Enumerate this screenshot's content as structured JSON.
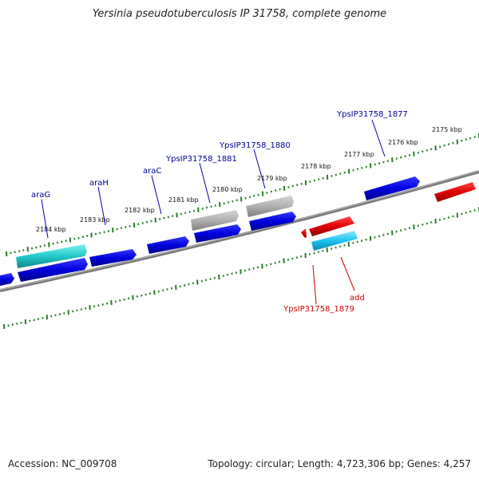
{
  "title": "Yersinia pseudotuberculosis IP 31758, complete genome",
  "accession": "Accession: NC_009708",
  "topology": "Topology: circular; Length: 4,723,306 bp; Genes: 4,257",
  "colors": {
    "forward_gene": "#0000dd",
    "reverse_gene": "#dd0000",
    "pseudo_gene": "#b0b0b0",
    "rna_gene": "#22c8c8",
    "backbone": "#808080",
    "tick": "#2a7a2a",
    "forward_label": "#000099",
    "reverse_label": "#cc0000"
  },
  "scale": {
    "kbp_labels": [
      {
        "kbp": 2184,
        "text": "2184 kbp"
      },
      {
        "kbp": 2183,
        "text": "2183 kbp"
      },
      {
        "kbp": 2182,
        "text": "2182 kbp"
      },
      {
        "kbp": 2181,
        "text": "2181 kbp"
      },
      {
        "kbp": 2180,
        "text": "2180 kbp"
      },
      {
        "kbp": 2179,
        "text": "2179 kbp"
      },
      {
        "kbp": 2178,
        "text": "2178 kbp"
      },
      {
        "kbp": 2177,
        "text": "2177 kbp"
      },
      {
        "kbp": 2176,
        "text": "2176 kbp"
      },
      {
        "kbp": 2175,
        "text": "2175 kbp"
      }
    ]
  },
  "gene_labels": [
    {
      "text": "araG",
      "strand": "forward"
    },
    {
      "text": "araH",
      "strand": "forward"
    },
    {
      "text": "araC",
      "strand": "forward"
    },
    {
      "text": "YpsIP31758_1881",
      "strand": "forward"
    },
    {
      "text": "YpsIP31758_1880",
      "strand": "forward"
    },
    {
      "text": "YpsIP31758_1877",
      "strand": "forward"
    },
    {
      "text": "YpsIP31758_1879",
      "strand": "reverse"
    },
    {
      "text": "add",
      "strand": "reverse"
    }
  ]
}
